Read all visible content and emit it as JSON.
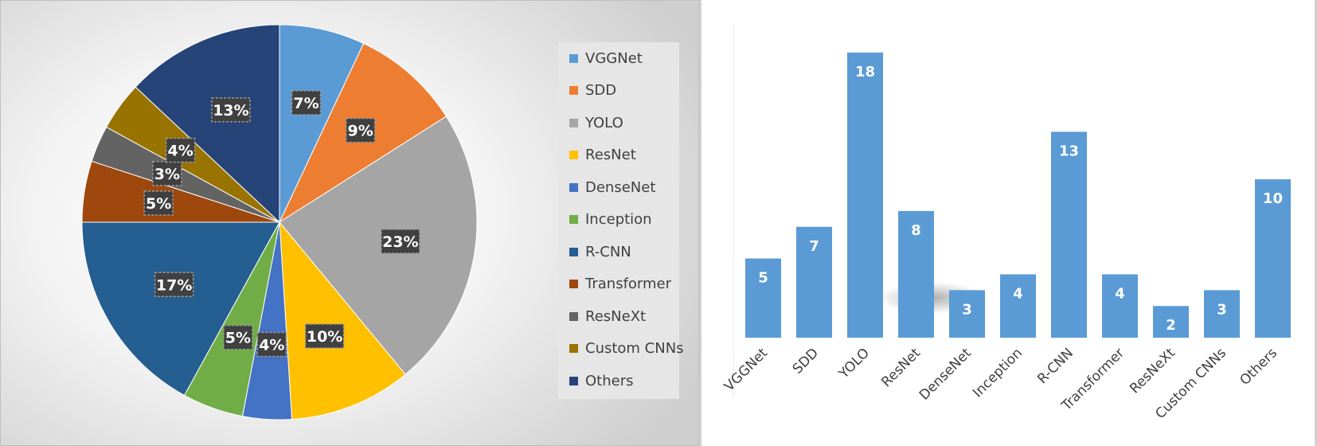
{
  "chart_data": [
    {
      "type": "pie",
      "categories": [
        "VGGNet",
        "SDD",
        "YOLO",
        "ResNet",
        "DenseNet",
        "Inception",
        "R-CNN",
        "Transformer",
        "ResNeXt",
        "Custom CNNs",
        "Others"
      ],
      "values": [
        7,
        9,
        23,
        10,
        4,
        5,
        17,
        5,
        3,
        4,
        13
      ],
      "data_labels": [
        "7%",
        "9%",
        "23%",
        "10%",
        "4%",
        "5%",
        "17%",
        "5%",
        "3%",
        "4%",
        "13%"
      ],
      "colors": [
        "#5b9bd5",
        "#ed7d31",
        "#a5a5a5",
        "#ffc000",
        "#4472c4",
        "#70ad47",
        "#255e91",
        "#9e480e",
        "#636363",
        "#997300",
        "#264478"
      ],
      "legend": "right"
    },
    {
      "type": "bar",
      "categories": [
        "VGGNet",
        "SDD",
        "YOLO",
        "ResNet",
        "DenseNet",
        "Inception",
        "R-CNN",
        "Transformer",
        "ResNeXt",
        "Custom CNNs",
        "Others"
      ],
      "values": [
        5,
        7,
        18,
        8,
        3,
        4,
        13,
        4,
        2,
        3,
        10
      ],
      "color": "#5b9bd5",
      "ylim": [
        0,
        18
      ],
      "grid": false
    }
  ]
}
